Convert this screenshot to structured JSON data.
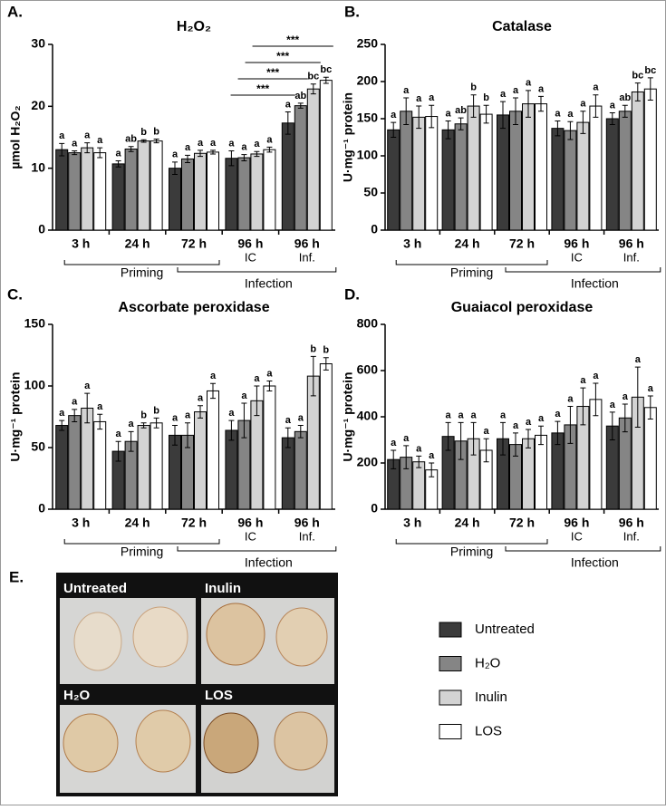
{
  "legend": {
    "series": [
      {
        "name": "Untreated",
        "color": "#3b3b3b"
      },
      {
        "name": "H₂O",
        "color": "#858585"
      },
      {
        "name": "Inulin",
        "color": "#d3d3d3"
      },
      {
        "name": "LOS",
        "color": "#ffffff"
      }
    ]
  },
  "chart_data": [
    {
      "type": "bar",
      "panel": "A.",
      "title": "H₂O₂",
      "y_label": "µmol H₂O₂",
      "categories": [
        "3 h",
        "24 h",
        "72 h",
        "96 h",
        "96 h"
      ],
      "sub_labels": [
        null,
        null,
        null,
        "IC",
        "Inf."
      ],
      "groups": [
        "Priming",
        "Infection"
      ],
      "ylim": [
        0,
        30
      ],
      "yticks": [
        0,
        10,
        20,
        30
      ],
      "series": [
        {
          "values": [
            13.0,
            10.7,
            10.0,
            11.6,
            17.3
          ],
          "errors": [
            1.0,
            0.5,
            1.0,
            1.2,
            1.8
          ],
          "letters": [
            "a",
            "a",
            "a",
            "a",
            "a"
          ]
        },
        {
          "values": [
            12.5,
            13.1,
            11.5,
            11.7,
            20.1
          ],
          "errors": [
            0.3,
            0.4,
            0.6,
            0.5,
            0.4
          ],
          "letters": [
            "a",
            "ab",
            "a",
            "a",
            "ab"
          ]
        },
        {
          "values": [
            13.3,
            14.4,
            12.4,
            12.3,
            22.8
          ],
          "errors": [
            0.8,
            0.2,
            0.5,
            0.4,
            0.8
          ],
          "letters": [
            "a",
            "b",
            "a",
            "a",
            "bc"
          ]
        },
        {
          "values": [
            12.5,
            14.4,
            12.6,
            13.0,
            24.2
          ],
          "errors": [
            0.8,
            0.3,
            0.3,
            0.4,
            0.5
          ],
          "letters": [
            "a",
            "b",
            "a",
            "a",
            "bc"
          ]
        }
      ],
      "annotations": [
        "***",
        "***",
        "***",
        "***"
      ]
    },
    {
      "type": "bar",
      "panel": "B.",
      "title": "Catalase",
      "y_label": "U·mg⁻¹ protein",
      "categories": [
        "3 h",
        "24 h",
        "72 h",
        "96 h",
        "96 h"
      ],
      "sub_labels": [
        null,
        null,
        null,
        "IC",
        "Inf."
      ],
      "groups": [
        "Priming",
        "Infection"
      ],
      "ylim": [
        0,
        250
      ],
      "yticks": [
        0,
        50,
        100,
        150,
        200,
        250
      ],
      "series": [
        {
          "values": [
            135,
            135,
            155,
            137,
            150
          ],
          "errors": [
            10,
            12,
            18,
            10,
            8
          ],
          "letters": [
            "a",
            "a",
            "a",
            "a",
            "a"
          ]
        },
        {
          "values": [
            160,
            143,
            160,
            134,
            160
          ],
          "errors": [
            18,
            8,
            18,
            12,
            8
          ],
          "letters": [
            "a",
            "ab",
            "a",
            "a",
            "ab"
          ]
        },
        {
          "values": [
            152,
            167,
            170,
            145,
            186
          ],
          "errors": [
            15,
            15,
            18,
            15,
            12
          ],
          "letters": [
            "a",
            "b",
            "a",
            "a",
            "bc"
          ]
        },
        {
          "values": [
            153,
            156,
            170,
            167,
            190
          ],
          "errors": [
            15,
            12,
            10,
            15,
            15
          ],
          "letters": [
            "a",
            "b",
            "a",
            "a",
            "bc"
          ]
        }
      ]
    },
    {
      "type": "bar",
      "panel": "C.",
      "title": "Ascorbate peroxidase",
      "y_label": "U·mg⁻¹ protein",
      "categories": [
        "3 h",
        "24 h",
        "72 h",
        "96 h",
        "96 h"
      ],
      "sub_labels": [
        null,
        null,
        null,
        "IC",
        "Inf."
      ],
      "groups": [
        "Priming",
        "Infection"
      ],
      "ylim": [
        0,
        150
      ],
      "yticks": [
        0,
        50,
        100,
        150
      ],
      "series": [
        {
          "values": [
            68,
            47,
            60,
            64,
            58
          ],
          "errors": [
            4,
            8,
            8,
            8,
            8
          ],
          "letters": [
            "a",
            "a",
            "a",
            "a",
            "a"
          ]
        },
        {
          "values": [
            76,
            55,
            60,
            72,
            63
          ],
          "errors": [
            5,
            8,
            10,
            14,
            5
          ],
          "letters": [
            "a",
            "a",
            "a",
            "a",
            "a"
          ]
        },
        {
          "values": [
            82,
            68,
            79,
            88,
            108
          ],
          "errors": [
            12,
            2,
            5,
            12,
            16
          ],
          "letters": [
            "a",
            "b",
            "a",
            "a",
            "b"
          ]
        },
        {
          "values": [
            71,
            70,
            96,
            100,
            118
          ],
          "errors": [
            6,
            4,
            6,
            4,
            5
          ],
          "letters": [
            "a",
            "b",
            "a",
            "a",
            "b"
          ]
        }
      ]
    },
    {
      "type": "bar",
      "panel": "D.",
      "title": "Guaiacol peroxidase",
      "y_label": "U·mg⁻¹ protein",
      "categories": [
        "3 h",
        "24 h",
        "72 h",
        "96 h",
        "96 h"
      ],
      "sub_labels": [
        null,
        null,
        null,
        "IC",
        "Inf."
      ],
      "groups": [
        "Priming",
        "Infection"
      ],
      "ylim": [
        0,
        800
      ],
      "yticks": [
        0,
        200,
        400,
        600,
        800
      ],
      "series": [
        {
          "values": [
            215,
            315,
            305,
            330,
            360
          ],
          "errors": [
            40,
            60,
            70,
            50,
            60
          ],
          "letters": [
            "a",
            "a",
            "a",
            "a",
            "a"
          ]
        },
        {
          "values": [
            225,
            295,
            280,
            365,
            395
          ],
          "errors": [
            50,
            80,
            50,
            80,
            60
          ],
          "letters": [
            "a",
            "a",
            "a",
            "a",
            "a"
          ]
        },
        {
          "values": [
            205,
            305,
            305,
            445,
            485
          ],
          "errors": [
            25,
            70,
            40,
            80,
            130
          ],
          "letters": [
            "a",
            "a",
            "a",
            "a",
            "a"
          ]
        },
        {
          "values": [
            170,
            255,
            320,
            475,
            440
          ],
          "errors": [
            30,
            50,
            40,
            70,
            50
          ],
          "letters": [
            "a",
            "a",
            "a",
            "a",
            "a"
          ]
        }
      ]
    }
  ],
  "photo_panel": {
    "panel": "E.",
    "labels": [
      "Untreated",
      "Inulin",
      "H₂O",
      "LOS"
    ]
  }
}
